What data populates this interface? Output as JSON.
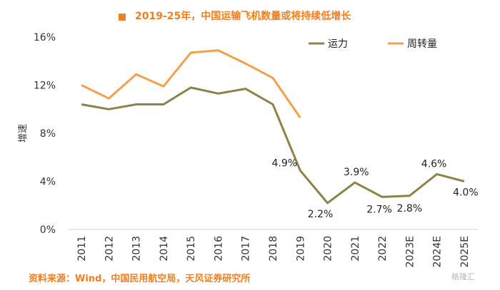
{
  "title": "2019-25年，中国运输飞机数量或将持续低增长",
  "source": "资料来源：Wind，中国民用航空局，天风证券研究所",
  "watermark": "格隆汇",
  "colors": {
    "accent": "#f07f1e",
    "capacity": "#8b8348",
    "turnover": "#f4a04a"
  },
  "chart_data": {
    "type": "line",
    "ylabel": "增速",
    "ylim": [
      0,
      16
    ],
    "yticks": [
      "0%",
      "4%",
      "8%",
      "12%",
      "16%"
    ],
    "categories": [
      "2011",
      "2012",
      "2013",
      "2014",
      "2015",
      "2016",
      "2017",
      "2018",
      "2019",
      "2020",
      "2021",
      "2022",
      "2023E",
      "2024E",
      "2025E"
    ],
    "legend_position": "top-right",
    "grid": false,
    "series": [
      {
        "name": "运力",
        "color": "#8b8348",
        "values": [
          10.4,
          10.0,
          10.4,
          10.4,
          11.8,
          11.3,
          11.7,
          10.4,
          4.9,
          2.2,
          3.9,
          2.7,
          2.8,
          4.6,
          4.0
        ],
        "data_labels": [
          {
            "index": 8,
            "text": "4.9%"
          },
          {
            "index": 9,
            "text": "2.2%"
          },
          {
            "index": 10,
            "text": "3.9%"
          },
          {
            "index": 11,
            "text": "2.7%"
          },
          {
            "index": 12,
            "text": "2.8%"
          },
          {
            "index": 13,
            "text": "4.6%"
          },
          {
            "index": 14,
            "text": "4.0%"
          }
        ]
      },
      {
        "name": "周转量",
        "color": "#f4a04a",
        "values": [
          12.0,
          10.9,
          12.9,
          11.9,
          14.7,
          14.9,
          13.8,
          12.6,
          9.3,
          null,
          null,
          null,
          null,
          null,
          null
        ]
      }
    ]
  }
}
